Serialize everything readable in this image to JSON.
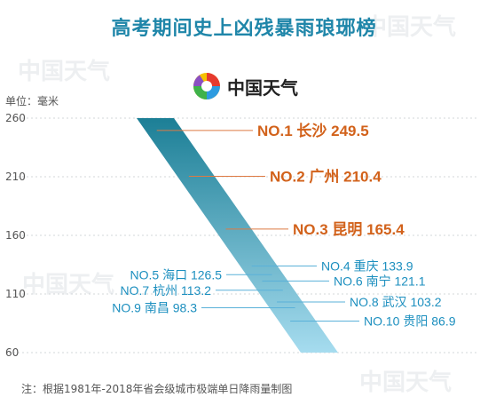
{
  "title": "高考期间史上凶残暴雨琅琊榜",
  "brand": {
    "name": "中国天气",
    "logo_icon": "rainbow-swirl-logo-icon"
  },
  "unit_label": "单位：毫米",
  "note": "注：根据1981年-2018年省会级城市极端单日降雨量制图",
  "watermark": "中国天气",
  "colors": {
    "title": "#1f86a9",
    "top3": "#d2621b",
    "rest": "#1c8fbf",
    "band_top": "#1c7f96",
    "band_bottom": "#a6dcef",
    "leader_top": "#dd7a43",
    "leader_rest": "#5ab1d9"
  },
  "chart_data": {
    "type": "bar",
    "ylim": [
      60,
      260
    ],
    "yticks": [
      60,
      110,
      160,
      210,
      260
    ],
    "grid": true,
    "entries": [
      {
        "rank": "NO.1",
        "city": "长沙",
        "value": 249.5
      },
      {
        "rank": "NO.2",
        "city": "广州",
        "value": 210.4
      },
      {
        "rank": "NO.3",
        "city": "昆明",
        "value": 165.4
      },
      {
        "rank": "NO.4",
        "city": "重庆",
        "value": 133.9
      },
      {
        "rank": "NO.5",
        "city": "海口",
        "value": 126.5
      },
      {
        "rank": "NO.6",
        "city": "南宁",
        "value": 121.1
      },
      {
        "rank": "NO.7",
        "city": "杭州",
        "value": 113.2
      },
      {
        "rank": "NO.8",
        "city": "武汉",
        "value": 103.2
      },
      {
        "rank": "NO.9",
        "city": "南昌",
        "value": 98.3
      },
      {
        "rank": "NO.10",
        "city": "贵阳",
        "value": 86.9
      }
    ]
  }
}
